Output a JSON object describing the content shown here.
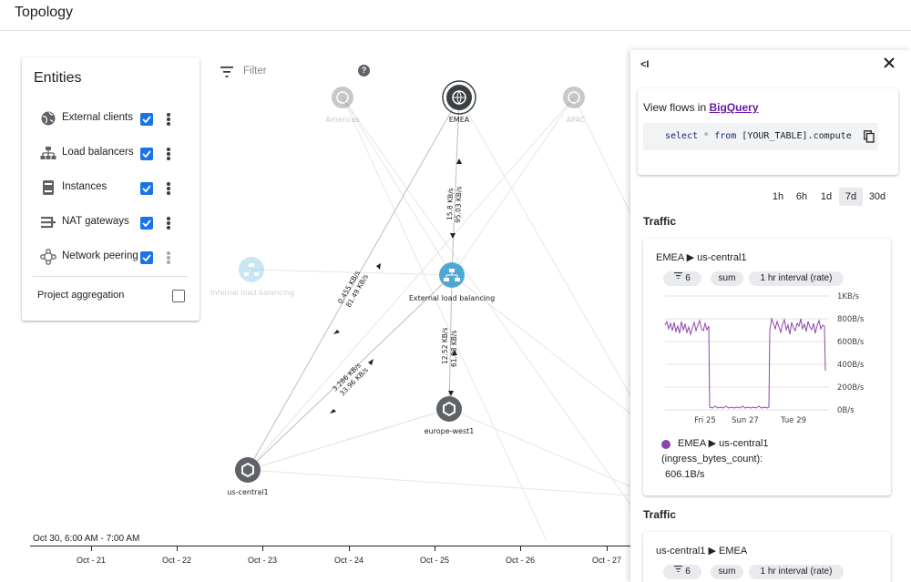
{
  "header": {
    "title": "Topology"
  },
  "filter": {
    "label": "Filter"
  },
  "entities": {
    "title": "Entities",
    "items": [
      {
        "label": "External clients",
        "icon": "globe-icon",
        "checked": true
      },
      {
        "label": "Load balancers",
        "icon": "load-balancer-icon",
        "checked": true
      },
      {
        "label": "Instances",
        "icon": "instance-icon",
        "checked": true
      },
      {
        "label": "NAT gateways",
        "icon": "nat-gateway-icon",
        "checked": true
      },
      {
        "label": "Network peering",
        "icon": "network-peering-icon",
        "checked": true
      }
    ],
    "project_aggregation": {
      "label": "Project aggregation",
      "checked": false
    }
  },
  "graph": {
    "nodes": {
      "americas": "Americas",
      "emea": "EMEA",
      "apac": "APAC",
      "internal_lb": "Internal load balancing",
      "external_lb": "External load balancing",
      "europe_west1": "europe-west1",
      "us_central1": "us-central1"
    },
    "edge_labels": {
      "emea_elb_a": "15.8 KB/s",
      "emea_elb_b": "95.03 KB/s",
      "emea_usc_a": "0.455 KB/s",
      "emea_usc_b": "81.49 KB/s",
      "elb_euw_a": "12.52 KB/s",
      "elb_euw_b": "61.08 KB/s",
      "elb_usc_a": "3.286 KB/s",
      "elb_usc_b": "33.96 KB/s"
    }
  },
  "timeline": {
    "range_label": "Oct 30, 6:00 AM - 7:00 AM",
    "ticks": [
      "Oct - 21",
      "Oct - 22",
      "Oct - 23",
      "Oct - 24",
      "Oct - 25",
      "Oct - 26",
      "Oct - 27"
    ]
  },
  "panel": {
    "collapse_label": "<I",
    "bigquery": {
      "prefix": "View flows in",
      "link": "BigQuery",
      "code_kw1": "select",
      "code_star": " * ",
      "code_kw2": "from",
      "code_rest": " [YOUR_TABLE].compute"
    },
    "time_ranges": [
      "1h",
      "6h",
      "1d",
      "7d",
      "30d"
    ],
    "selected_range": "7d",
    "traffic_label": "Traffic",
    "card1": {
      "title": "EMEA ▶ us-central1",
      "chips": [
        "6",
        "sum",
        "1 hr interval (rate)"
      ],
      "y_ticks": [
        "1KB/s",
        "800B/s",
        "600B/s",
        "400B/s",
        "200B/s",
        "0B/s"
      ],
      "x_ticks": [
        "Fri 25",
        "Sun 27",
        "Tue 29"
      ],
      "legend_line1": "EMEA ▶ us-central1",
      "legend_line2": "(ingress_bytes_count):",
      "legend_value": "606.1B/s",
      "series_color": "#8e44ad"
    },
    "traffic_label2": "Traffic",
    "card2": {
      "title": "us-central1 ▶ EMEA",
      "chips": [
        "6",
        "sum",
        "1 hr interval (rate)"
      ]
    }
  }
}
